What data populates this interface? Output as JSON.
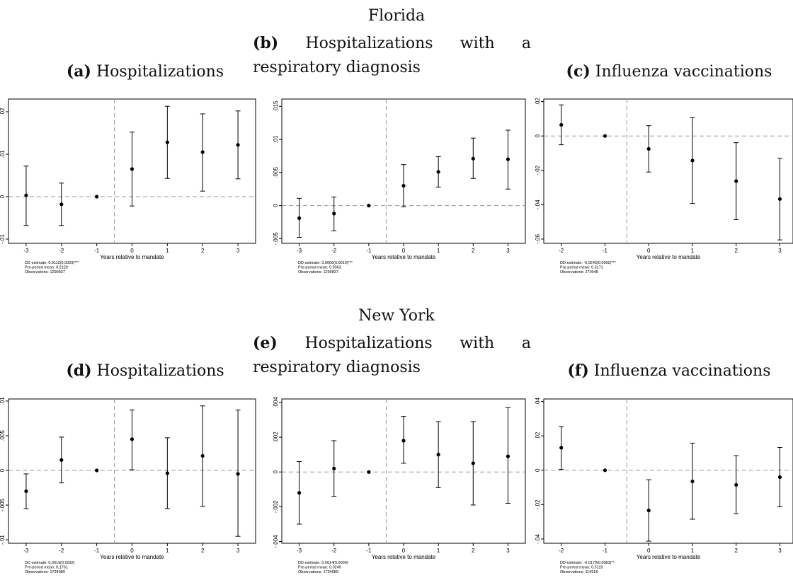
{
  "sections": [
    {
      "title": "Florida",
      "panels": [
        {
          "letter": "(a)",
          "title": "Hospitalizations"
        },
        {
          "letter": "(b)",
          "title": "Hospitalizations with a respiratory diagnosis"
        },
        {
          "letter": "(c)",
          "title": "Influenza vaccinations"
        }
      ]
    },
    {
      "title": "New York",
      "panels": [
        {
          "letter": "(d)",
          "title": "Hospitalizations"
        },
        {
          "letter": "(e)",
          "title": "Hospitalizations with a respiratory diagnosis"
        },
        {
          "letter": "(f)",
          "title": "Influenza vaccinations"
        }
      ]
    }
  ],
  "chart_data": [
    {
      "panel": "a",
      "type": "scatter",
      "error_bars": true,
      "xlabel": "Years relative to mandate",
      "x": [
        -3,
        -2,
        -1,
        0,
        1,
        2,
        3
      ],
      "y": [
        0.0003,
        -0.0018,
        0,
        0.0065,
        0.0128,
        0.0105,
        0.0122
      ],
      "ci_low": [
        -0.0068,
        -0.0068,
        0,
        -0.0022,
        0.0043,
        0.0013,
        0.0042
      ],
      "ci_high": [
        0.0072,
        0.0032,
        0,
        0.0152,
        0.0213,
        0.0195,
        0.0202
      ],
      "xlim": [
        -3.5,
        3.5
      ],
      "ylim": [
        -0.011,
        0.023
      ],
      "yticks": [
        -0.01,
        0,
        0.01,
        0.02
      ],
      "ytick_labels": [
        "-.01",
        "0",
        ".01",
        ".02"
      ],
      "xticks": [
        -3,
        -2,
        -1,
        0,
        1,
        2,
        3
      ],
      "hline": 0,
      "vline": -0.5,
      "notes": [
        "DD estimate: 0.0112(0.0029)***",
        "Pre-period mean: 0.2120",
        "Observations: 1299837"
      ]
    },
    {
      "panel": "b",
      "type": "scatter",
      "error_bars": true,
      "xlabel": "Years relative to mandate",
      "x": [
        -3,
        -2,
        -1,
        0,
        1,
        2,
        3
      ],
      "y": [
        -0.0019,
        -0.0012,
        0,
        0.003,
        0.0051,
        0.0071,
        0.007
      ],
      "ci_low": [
        -0.0048,
        -0.0038,
        0,
        -0.0002,
        0.0028,
        0.0041,
        0.0025
      ],
      "ci_high": [
        0.0011,
        0.0013,
        0,
        0.0062,
        0.0074,
        0.0102,
        0.0114
      ],
      "xlim": [
        -3.5,
        3.5
      ],
      "ylim": [
        -0.0057,
        0.0161
      ],
      "yticks": [
        -0.005,
        0,
        0.005,
        0.01,
        0.015
      ],
      "ytick_labels": [
        "-.005",
        "0",
        ".005",
        ".01",
        ".015"
      ],
      "xticks": [
        -3,
        -2,
        -1,
        0,
        1,
        2,
        3
      ],
      "hline": 0,
      "vline": -0.5,
      "notes": [
        "DD estimate: 0.0066(0.0010)***",
        "Pre-period mean: 0.0363",
        "Observations: 1299837"
      ]
    },
    {
      "panel": "c",
      "type": "scatter",
      "error_bars": true,
      "xlabel": "Years relative to mandate",
      "x": [
        -2,
        -1,
        0,
        1,
        2,
        3
      ],
      "y": [
        0.0065,
        0,
        -0.0075,
        -0.0143,
        -0.0263,
        -0.0367
      ],
      "ci_low": [
        -0.0051,
        0,
        -0.021,
        -0.0393,
        -0.0487,
        -0.0605
      ],
      "ci_high": [
        0.0181,
        0,
        0.006,
        0.0107,
        -0.0039,
        -0.013
      ],
      "xlim": [
        -2.4,
        3.3
      ],
      "ylim": [
        -0.0625,
        0.0215
      ],
      "yticks": [
        -0.06,
        -0.04,
        -0.02,
        0,
        0.02
      ],
      "ytick_labels": [
        "-.06",
        "-.04",
        "-.02",
        "0",
        ".02"
      ],
      "xticks": [
        -2,
        -1,
        0,
        1,
        2,
        3
      ],
      "hline": 0,
      "vline": -0.5,
      "notes": [
        "DD estimate: -0.0243(0.0092)***",
        "Pre-period mean: 0.3171",
        "Observations: 270048"
      ]
    },
    {
      "panel": "d",
      "type": "scatter",
      "error_bars": true,
      "xlabel": "Years relative to mandate",
      "x": [
        -3,
        -2,
        -1,
        0,
        1,
        2,
        3
      ],
      "y": [
        -0.003,
        0.0015,
        0,
        0.0045,
        -0.0004,
        0.0021,
        -0.0005
      ],
      "ci_low": [
        -0.0055,
        -0.0018,
        0,
        0.0001,
        -0.0055,
        -0.0052,
        -0.0095
      ],
      "ci_high": [
        -0.0005,
        0.0048,
        0,
        0.0087,
        0.0047,
        0.0093,
        0.0087
      ],
      "xlim": [
        -3.5,
        3.5
      ],
      "ylim": [
        -0.0105,
        0.0103
      ],
      "yticks": [
        -0.01,
        -0.005,
        0,
        0.005,
        0.01
      ],
      "ytick_labels": [
        "-.01",
        "-.005",
        "0",
        ".005",
        ".01"
      ],
      "xticks": [
        -3,
        -2,
        -1,
        0,
        1,
        2,
        3
      ],
      "hline": 0,
      "vline": -0.5,
      "notes": [
        "DD estimate: 0.0019(0.0032)",
        "Pre-period mean: 0.1761",
        "Observations: 1734089"
      ]
    },
    {
      "panel": "e",
      "type": "scatter",
      "error_bars": true,
      "xlabel": "Years relative to mandate",
      "x": [
        -3,
        -2,
        -1,
        0,
        1,
        2,
        3
      ],
      "y": [
        -0.0012,
        0.0002,
        0,
        0.0018,
        0.001,
        0.0005,
        0.0009
      ],
      "ci_low": [
        -0.003,
        -0.0014,
        0,
        0.0005,
        -0.0009,
        -0.0019,
        -0.0018
      ],
      "ci_high": [
        0.0006,
        0.0018,
        0,
        0.0032,
        0.0029,
        0.0029,
        0.0037
      ],
      "xlim": [
        -3.5,
        3.5
      ],
      "ylim": [
        -0.0041,
        0.0042
      ],
      "yticks": [
        -0.004,
        -0.002,
        0,
        0.002,
        0.004
      ],
      "ytick_labels": [
        "-.004",
        "-.002",
        "0",
        ".002",
        ".004"
      ],
      "xticks": [
        -3,
        -2,
        -1,
        0,
        1,
        2,
        3
      ],
      "hline": 0,
      "vline": -0.5,
      "notes": [
        "DD estimate: 0.0014(0.0009)",
        "Pre-period mean: 0.0249",
        "Observations: 1734089"
      ]
    },
    {
      "panel": "f",
      "type": "scatter",
      "error_bars": true,
      "xlabel": "Years relative to mandate",
      "x": [
        -2,
        -1,
        0,
        1,
        2,
        3
      ],
      "y": [
        0.0131,
        0,
        -0.0234,
        -0.0065,
        -0.0085,
        -0.004
      ],
      "ci_low": [
        0.0005,
        0,
        -0.0413,
        -0.0285,
        -0.0253,
        -0.0213
      ],
      "ci_high": [
        0.0255,
        0,
        -0.0055,
        0.0158,
        0.0085,
        0.0133
      ],
      "xlim": [
        -2.4,
        3.3
      ],
      "ylim": [
        -0.0425,
        0.0415
      ],
      "yticks": [
        -0.04,
        -0.02,
        0,
        0.02,
        0.04
      ],
      "ytick_labels": [
        "-.04",
        "-.02",
        "0",
        ".02",
        ".04"
      ],
      "xticks": [
        -2,
        -1,
        0,
        1,
        2,
        3
      ],
      "hline": 0,
      "vline": -0.5,
      "notes": [
        "DD estimate: -0.0170(0.0083)**",
        "Pre-period mean: 0.5119",
        "Observations: 114918"
      ]
    }
  ]
}
